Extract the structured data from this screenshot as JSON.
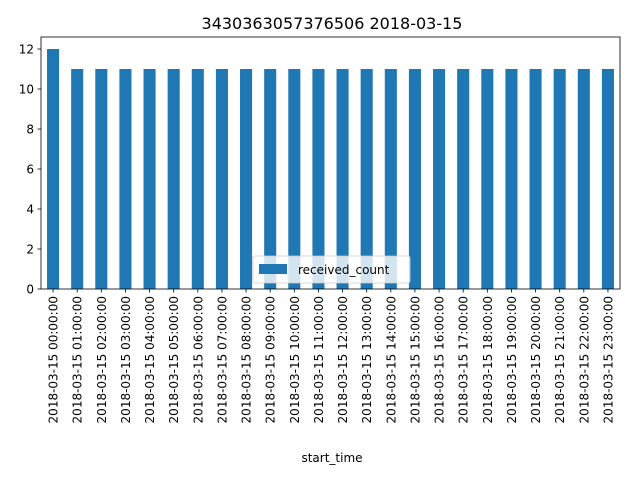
{
  "chart_data": {
    "type": "bar",
    "title": "3430363057376506 2018-03-15",
    "xlabel": "start_time",
    "ylabel": "",
    "ylim": [
      0,
      12.6
    ],
    "yticks": [
      0,
      2,
      4,
      6,
      8,
      10,
      12
    ],
    "grid": false,
    "legend_position": "lower-center",
    "categories": [
      "2018-03-15 00:00:00",
      "2018-03-15 01:00:00",
      "2018-03-15 02:00:00",
      "2018-03-15 03:00:00",
      "2018-03-15 04:00:00",
      "2018-03-15 05:00:00",
      "2018-03-15 06:00:00",
      "2018-03-15 07:00:00",
      "2018-03-15 08:00:00",
      "2018-03-15 09:00:00",
      "2018-03-15 10:00:00",
      "2018-03-15 11:00:00",
      "2018-03-15 12:00:00",
      "2018-03-15 13:00:00",
      "2018-03-15 14:00:00",
      "2018-03-15 15:00:00",
      "2018-03-15 16:00:00",
      "2018-03-15 17:00:00",
      "2018-03-15 18:00:00",
      "2018-03-15 19:00:00",
      "2018-03-15 20:00:00",
      "2018-03-15 21:00:00",
      "2018-03-15 22:00:00",
      "2018-03-15 23:00:00"
    ],
    "series": [
      {
        "name": "received_count",
        "color": "#1f77b4",
        "values": [
          12,
          11,
          11,
          11,
          11,
          11,
          11,
          11,
          11,
          11,
          11,
          11,
          11,
          11,
          11,
          11,
          11,
          11,
          11,
          11,
          11,
          11,
          11,
          11
        ]
      }
    ]
  }
}
